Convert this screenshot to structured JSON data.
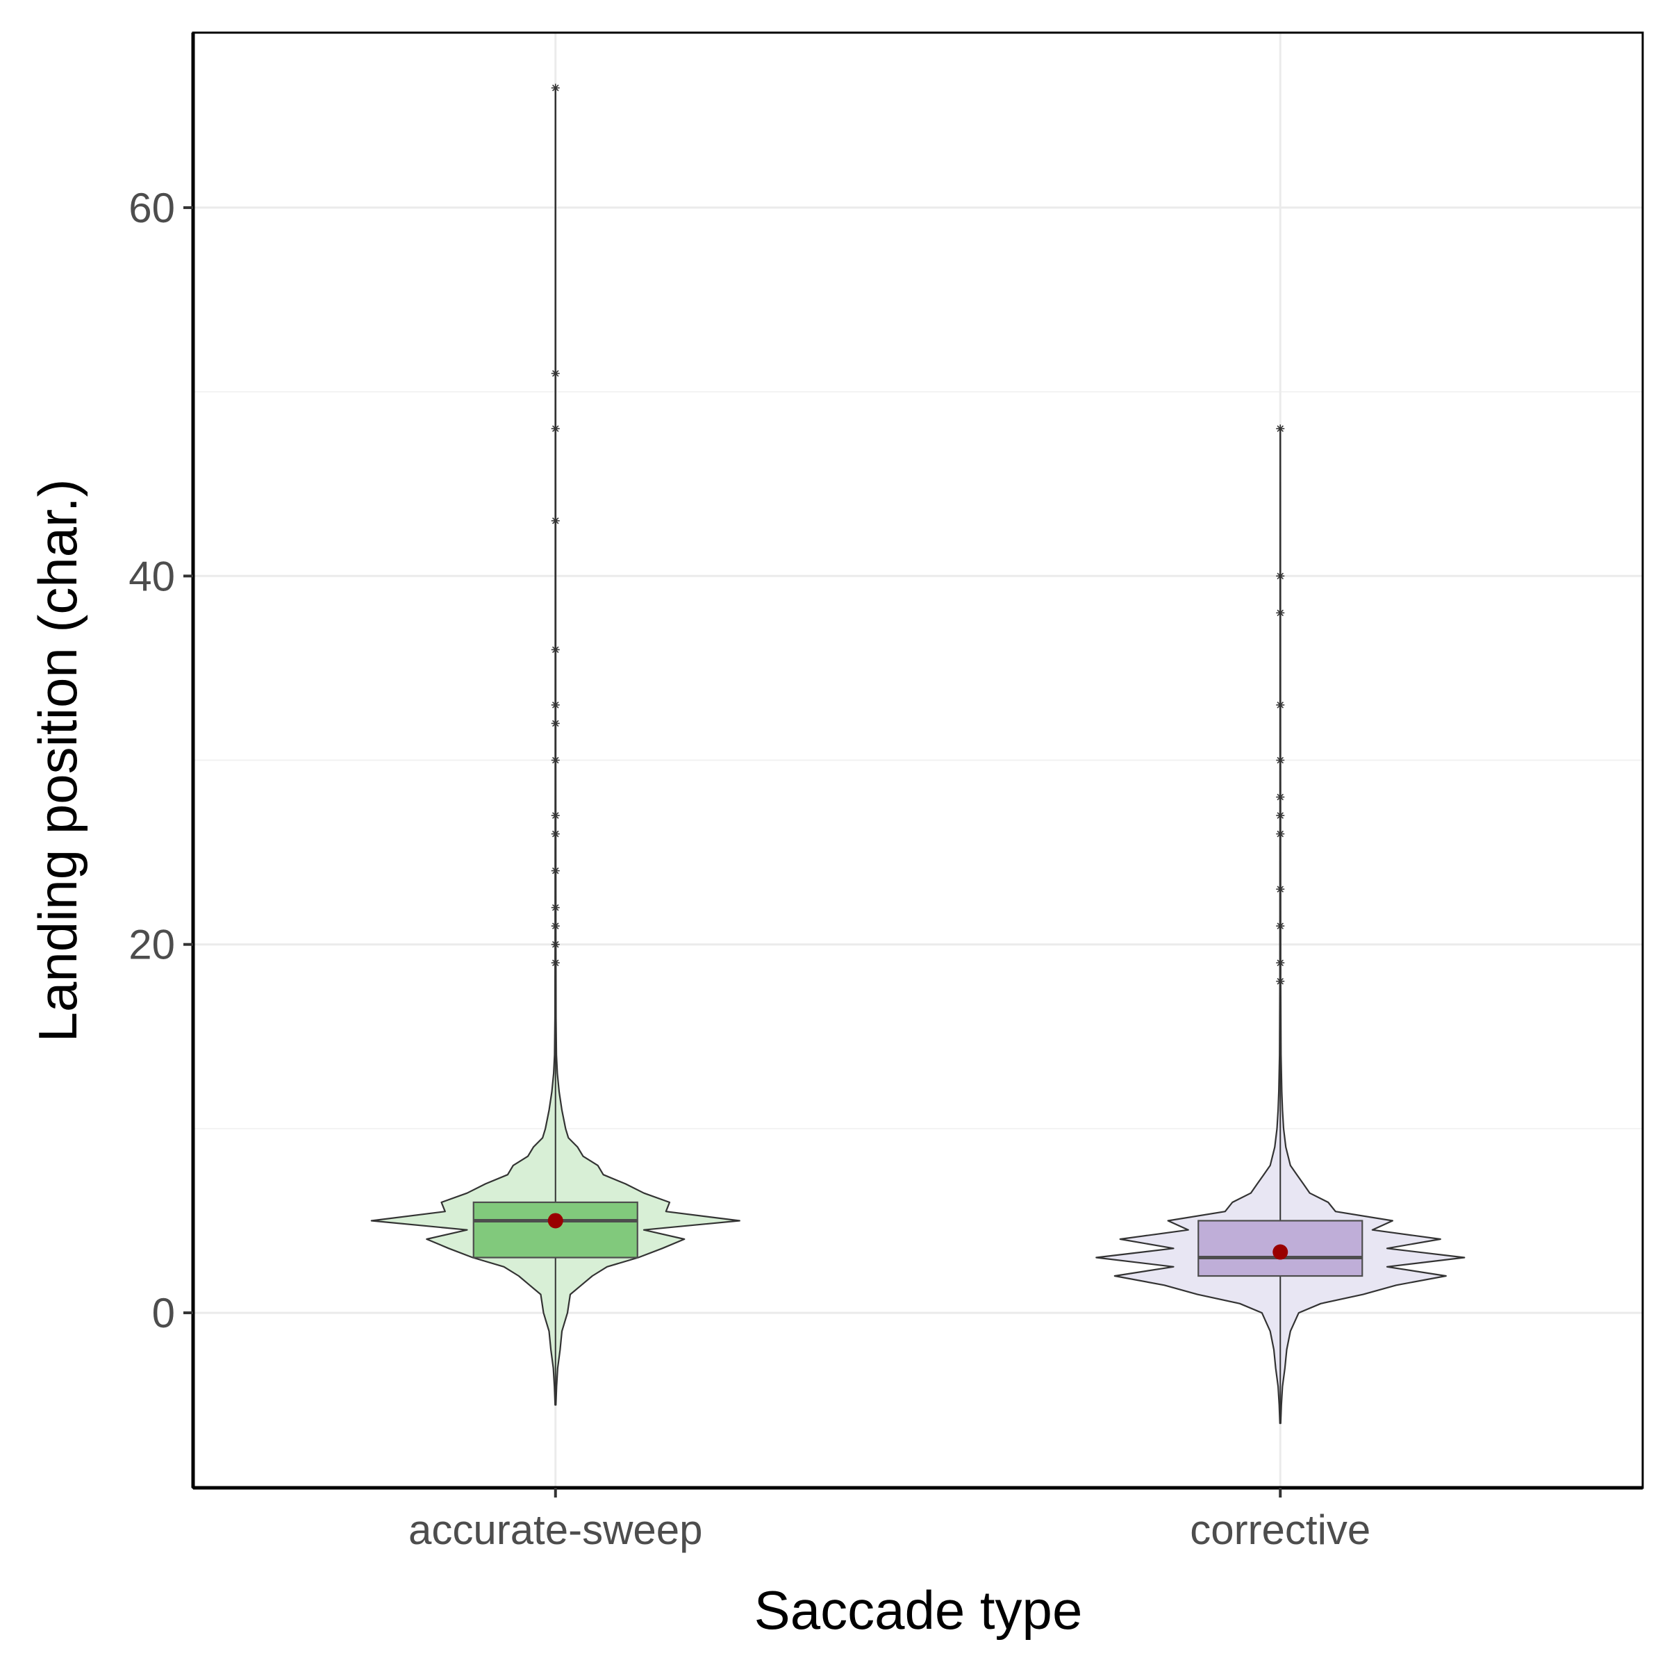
{
  "chart_data": {
    "type": "violin",
    "xlabel": "Saccade type",
    "ylabel": "Landing position (char.)",
    "categories": [
      "accurate-sweep",
      "corrective"
    ],
    "ylim": [
      -9.5,
      69.5
    ],
    "yticks": [
      0,
      20,
      40,
      60
    ],
    "grid": true,
    "legend": "none",
    "groups": [
      {
        "name": "accurate-sweep",
        "violin_color": "#d8efd6",
        "box_color": "#81c97c",
        "box": {
          "q1": 3,
          "median": 5,
          "q3": 6,
          "whisker_low": -5,
          "whisker_high": 66.5
        },
        "mean": 5,
        "outliers": [
          66.5,
          51,
          48,
          43,
          36,
          33,
          32,
          30,
          27,
          26,
          24,
          22,
          21,
          20,
          19
        ],
        "density": [
          [
            -5,
            0.2
          ],
          [
            -4,
            0.6
          ],
          [
            -3,
            1.2
          ],
          [
            -2,
            2.5
          ],
          [
            -1,
            3.5
          ],
          [
            0,
            6.5
          ],
          [
            1,
            8.0
          ],
          [
            1.5,
            14.0
          ],
          [
            2,
            20.0
          ],
          [
            2.5,
            28.0
          ],
          [
            3,
            45.0
          ],
          [
            3.5,
            58.0
          ],
          [
            4,
            70.0
          ],
          [
            4.5,
            48.0
          ],
          [
            5,
            100.0
          ],
          [
            5.5,
            60.0
          ],
          [
            6,
            62.0
          ],
          [
            6.5,
            48.0
          ],
          [
            7,
            38.0
          ],
          [
            7.5,
            26.0
          ],
          [
            8,
            23.0
          ],
          [
            8.5,
            15.0
          ],
          [
            9,
            12.0
          ],
          [
            9.5,
            7.0
          ],
          [
            10,
            5.5
          ],
          [
            11,
            3.5
          ],
          [
            12,
            2.0
          ],
          [
            13,
            1.0
          ],
          [
            14,
            0.5
          ],
          [
            16,
            0.3
          ],
          [
            20,
            0.2
          ],
          [
            30,
            0.12
          ],
          [
            45,
            0.08
          ],
          [
            66.5,
            0.05
          ]
        ]
      },
      {
        "name": "corrective",
        "violin_color": "#e8e6f3",
        "box_color": "#bfaed8",
        "box": {
          "q1": 2,
          "median": 3,
          "q3": 5,
          "whisker_low": -6,
          "whisker_high": 48
        },
        "mean": 3.3,
        "outliers": [
          48,
          40,
          38,
          33,
          30,
          28,
          27,
          26,
          23,
          21,
          19,
          18
        ],
        "density": [
          [
            -6,
            0.2
          ],
          [
            -5,
            0.6
          ],
          [
            -4,
            1.2
          ],
          [
            -3,
            2.5
          ],
          [
            -2,
            3.5
          ],
          [
            -1,
            5.5
          ],
          [
            0,
            10.0
          ],
          [
            0.5,
            22.0
          ],
          [
            1,
            45.0
          ],
          [
            1.5,
            63.0
          ],
          [
            2,
            90.0
          ],
          [
            2.5,
            58.0
          ],
          [
            3,
            100.0
          ],
          [
            3.5,
            58.0
          ],
          [
            4,
            87.0
          ],
          [
            4.5,
            50.0
          ],
          [
            5,
            61.0
          ],
          [
            5.5,
            30.0
          ],
          [
            6,
            26.0
          ],
          [
            6.5,
            16.0
          ],
          [
            7,
            12.5
          ],
          [
            7.5,
            9.0
          ],
          [
            8,
            5.5
          ],
          [
            9,
            3.0
          ],
          [
            10,
            1.8
          ],
          [
            11,
            1.2
          ],
          [
            12,
            0.8
          ],
          [
            14,
            0.4
          ],
          [
            18,
            0.2
          ],
          [
            30,
            0.12
          ],
          [
            48,
            0.05
          ]
        ]
      }
    ]
  }
}
